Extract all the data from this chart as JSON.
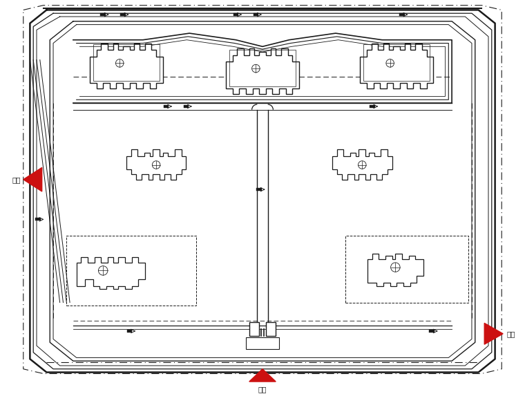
{
  "bg_color": "#ffffff",
  "line_color": "#1a1a1a",
  "red_color": "#cc1111",
  "gate_label": "大门",
  "figsize": [
    7.6,
    5.7
  ],
  "dpi": 100
}
